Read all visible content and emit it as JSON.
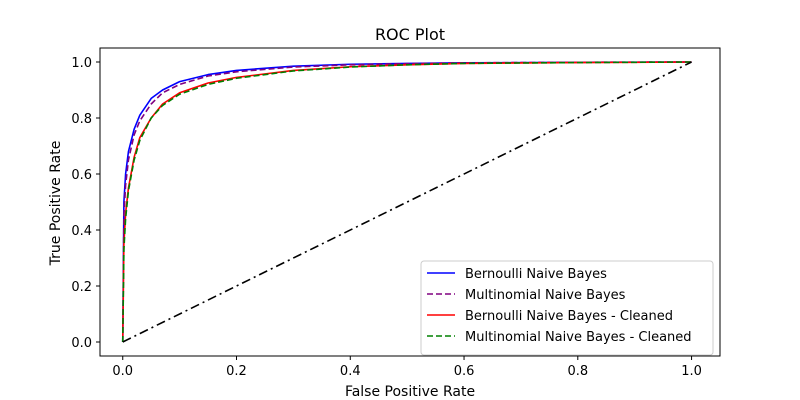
{
  "chart_data": {
    "type": "line",
    "title": "ROC Plot",
    "xlabel": "False Positive Rate",
    "ylabel": "True Positive Rate",
    "xlim": [
      -0.04,
      1.05
    ],
    "ylim": [
      -0.05,
      1.05
    ],
    "xticks": [
      0.0,
      0.2,
      0.4,
      0.6,
      0.8,
      1.0
    ],
    "yticks": [
      0.0,
      0.2,
      0.4,
      0.6,
      0.8,
      1.0
    ],
    "xtick_labels": [
      "0.0",
      "0.2",
      "0.4",
      "0.6",
      "0.8",
      "1.0"
    ],
    "ytick_labels": [
      "0.0",
      "0.2",
      "0.4",
      "0.6",
      "0.8",
      "1.0"
    ],
    "grid": false,
    "legend_position": "lower-right",
    "series": [
      {
        "name": "Bernoulli Naive Bayes",
        "color": "#0000ff",
        "dash": "solid",
        "x": [
          0,
          0.002,
          0.005,
          0.01,
          0.02,
          0.03,
          0.05,
          0.07,
          0.1,
          0.15,
          0.2,
          0.3,
          0.4,
          0.5,
          0.6,
          0.8,
          1.0
        ],
        "y": [
          0,
          0.5,
          0.6,
          0.68,
          0.76,
          0.81,
          0.87,
          0.9,
          0.93,
          0.955,
          0.97,
          0.985,
          0.992,
          0.995,
          0.997,
          0.999,
          1.0
        ]
      },
      {
        "name": "Multinomial Naive Bayes",
        "color": "#800080",
        "dash": "dashed",
        "x": [
          0,
          0.002,
          0.005,
          0.01,
          0.02,
          0.03,
          0.05,
          0.07,
          0.1,
          0.15,
          0.2,
          0.3,
          0.4,
          0.5,
          0.6,
          0.8,
          1.0
        ],
        "y": [
          0,
          0.45,
          0.56,
          0.65,
          0.74,
          0.79,
          0.85,
          0.89,
          0.92,
          0.95,
          0.965,
          0.982,
          0.99,
          0.994,
          0.997,
          0.999,
          1.0
        ]
      },
      {
        "name": "Bernoulli Naive Bayes - Cleaned",
        "color": "#ff0000",
        "dash": "solid",
        "x": [
          0,
          0.002,
          0.005,
          0.01,
          0.02,
          0.03,
          0.05,
          0.07,
          0.1,
          0.15,
          0.2,
          0.3,
          0.4,
          0.5,
          0.6,
          0.8,
          1.0
        ],
        "y": [
          0,
          0.35,
          0.46,
          0.55,
          0.66,
          0.73,
          0.8,
          0.85,
          0.89,
          0.925,
          0.945,
          0.97,
          0.983,
          0.99,
          0.995,
          0.998,
          1.0
        ]
      },
      {
        "name": "Multinomial Naive Bayes - Cleaned",
        "color": "#008000",
        "dash": "dashed",
        "x": [
          0,
          0.002,
          0.005,
          0.01,
          0.02,
          0.03,
          0.05,
          0.07,
          0.1,
          0.15,
          0.2,
          0.3,
          0.4,
          0.5,
          0.6,
          0.8,
          1.0
        ],
        "y": [
          0,
          0.33,
          0.44,
          0.54,
          0.65,
          0.72,
          0.8,
          0.845,
          0.885,
          0.92,
          0.942,
          0.968,
          0.982,
          0.99,
          0.995,
          0.998,
          1.0
        ]
      },
      {
        "color": "#000000",
        "dash": "dashdot",
        "x": [
          0,
          1
        ],
        "y": [
          0,
          1
        ]
      }
    ]
  }
}
